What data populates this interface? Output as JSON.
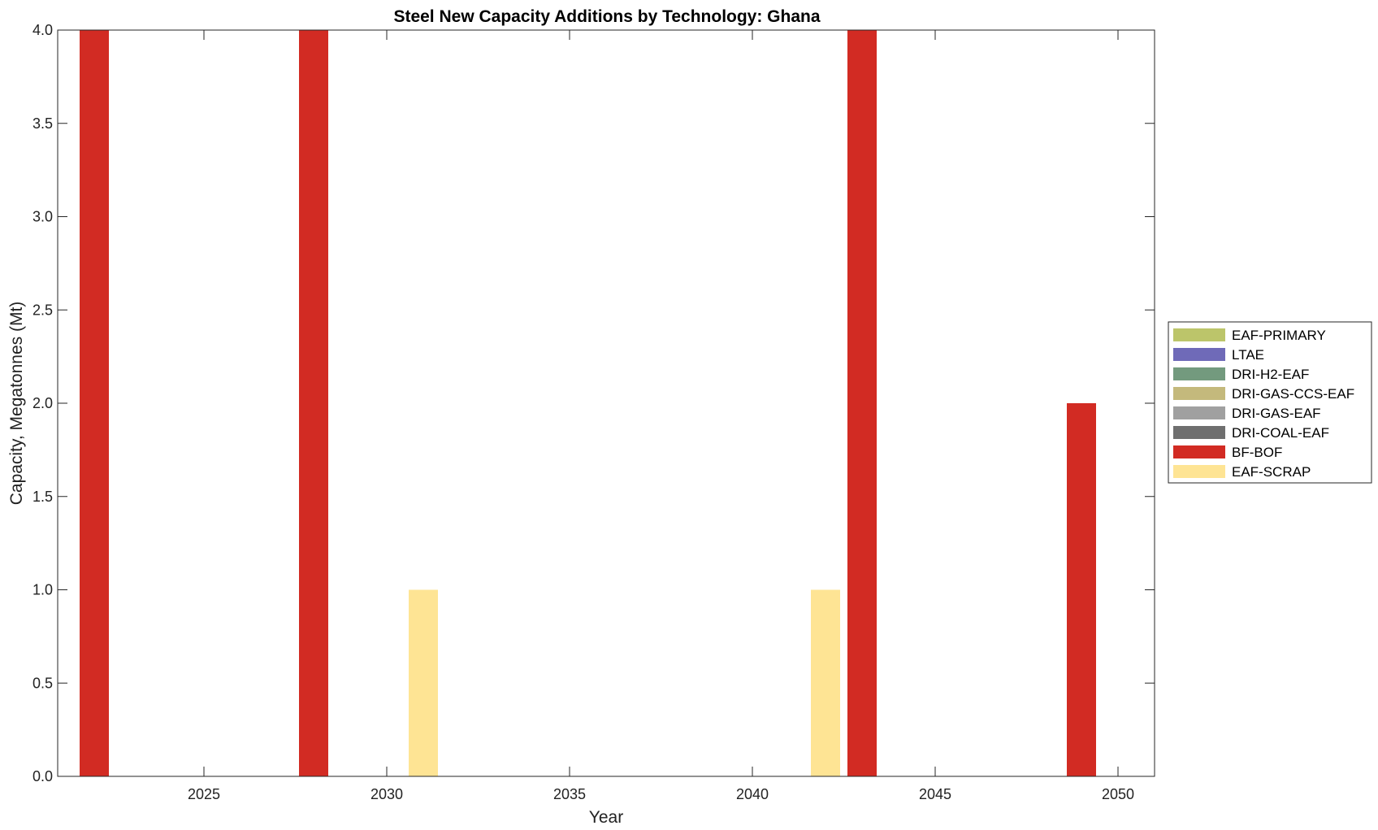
{
  "chart_data": {
    "type": "bar",
    "stacked": true,
    "title": "Steel New Capacity Additions by Technology: Ghana",
    "xlabel": "Year",
    "ylabel": "Capacity, Megatonnes (Mt)",
    "xlim": [
      2021,
      2051
    ],
    "ylim": [
      0,
      4
    ],
    "xticks": [
      2025,
      2030,
      2035,
      2040,
      2045,
      2050
    ],
    "xtick_labels": [
      "2025",
      "2030",
      "2035",
      "2040",
      "2045",
      "2050"
    ],
    "yticks": [
      0,
      0.5,
      1,
      1.5,
      2,
      2.5,
      3,
      3.5,
      4
    ],
    "ytick_labels": [
      "0.0",
      "0.5",
      "1.0",
      "1.5",
      "2.0",
      "2.5",
      "3.0",
      "3.5",
      "4.0"
    ],
    "legend_position": "right-outside",
    "grid": false,
    "x": [
      2022,
      2028,
      2031,
      2042,
      2043,
      2049
    ],
    "series": [
      {
        "name": "EAF-PRIMARY",
        "color": "#bcc56a",
        "values": [
          0,
          0,
          0,
          0,
          0,
          0
        ]
      },
      {
        "name": "LTAE",
        "color": "#6f6ab8",
        "values": [
          0,
          0,
          0,
          0,
          0,
          0
        ]
      },
      {
        "name": "DRI-H2-EAF",
        "color": "#739a7e",
        "values": [
          0,
          0,
          0,
          0,
          0,
          0
        ]
      },
      {
        "name": "DRI-GAS-CCS-EAF",
        "color": "#c4b97c",
        "values": [
          0,
          0,
          0,
          0,
          0,
          0
        ]
      },
      {
        "name": "DRI-GAS-EAF",
        "color": "#a0a0a0",
        "values": [
          0,
          0,
          0,
          0,
          0,
          0
        ]
      },
      {
        "name": "DRI-COAL-EAF",
        "color": "#6f6f6f",
        "values": [
          0,
          0,
          0,
          0,
          0,
          0
        ]
      },
      {
        "name": "BF-BOF",
        "color": "#d22b23",
        "values": [
          4,
          4,
          0,
          0,
          4,
          2
        ]
      },
      {
        "name": "EAF-SCRAP",
        "color": "#fee494",
        "values": [
          0,
          0,
          1,
          1,
          0,
          0
        ]
      }
    ]
  }
}
